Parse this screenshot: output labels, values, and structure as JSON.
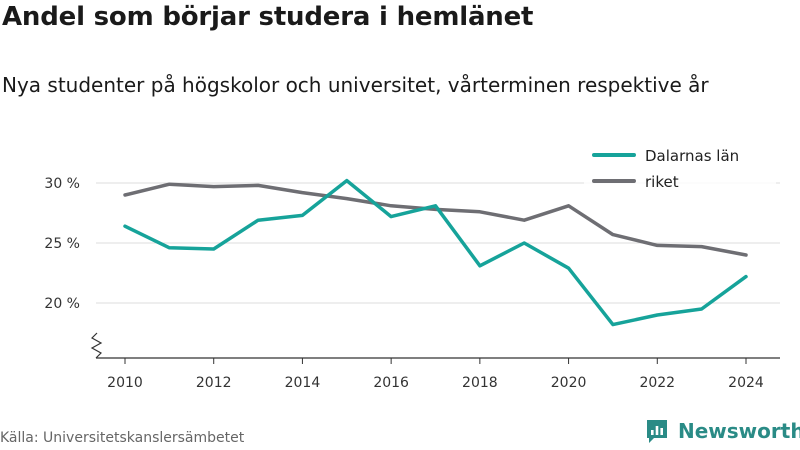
{
  "title": "Andel som börjar studera i hemlänet",
  "subtitle": "Nya studenter på högskolor och universitet, vårterminen respektive år",
  "source": "Källa: Universitetskanslersämbetet",
  "brand": {
    "name": "Newsworthy",
    "icon": "newsworthy-logo-icon",
    "color": "#2a8b86"
  },
  "chart_data": {
    "type": "line",
    "x": [
      2010,
      2011,
      2012,
      2013,
      2014,
      2015,
      2016,
      2017,
      2018,
      2019,
      2020,
      2021,
      2022,
      2023,
      2024
    ],
    "series": [
      {
        "name": "Dalarnas län",
        "color": "#16a39a",
        "values": [
          26.4,
          24.6,
          24.5,
          26.9,
          27.3,
          30.2,
          27.2,
          28.1,
          23.1,
          25.0,
          22.9,
          18.2,
          19.0,
          19.5,
          22.2
        ]
      },
      {
        "name": "riket",
        "color": "#6e6e73",
        "values": [
          29.0,
          29.9,
          29.7,
          29.8,
          29.2,
          28.7,
          28.1,
          27.8,
          27.6,
          26.9,
          28.1,
          25.7,
          24.8,
          24.7,
          24.0
        ]
      }
    ],
    "y_ticks": [
      20,
      25,
      30
    ],
    "y_tick_labels": [
      "20 %",
      "25 %",
      "30 %"
    ],
    "x_ticks": [
      2010,
      2012,
      2014,
      2016,
      2018,
      2020,
      2022,
      2024
    ],
    "y_axis_break": true,
    "grid": true,
    "legend": "top-right"
  }
}
